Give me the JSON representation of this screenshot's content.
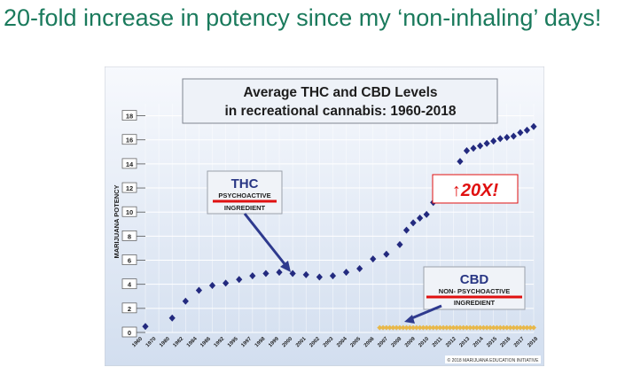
{
  "slide": {
    "title": "20-fold increase in potency since my ‘non-inhaling’ days!"
  },
  "chart_data": {
    "type": "scatter",
    "title": "Average THC and CBD Levels",
    "subtitle": "in recreational cannabis: 1960-2018",
    "ylabel": "MARIJUANA POTENCY",
    "xlabel": "",
    "ylim": [
      0,
      19
    ],
    "yticks": [
      0,
      2,
      4,
      6,
      8,
      10,
      12,
      14,
      16,
      18
    ],
    "xlim": [
      1960,
      2018
    ],
    "xticks": [
      "1960",
      "1970",
      "1980",
      "1982",
      "1984",
      "1986",
      "1992",
      "1995",
      "1997",
      "1998",
      "1999",
      "2000",
      "2001",
      "2002",
      "2003",
      "2004",
      "2005",
      "2006",
      "2007",
      "2008",
      "2009",
      "2010",
      "2011",
      "2012",
      "2013",
      "2014",
      "2015",
      "2016",
      "2017",
      "2018"
    ],
    "grid": true,
    "series": [
      {
        "name": "THC",
        "color": "#232a7f",
        "marker": "diamond",
        "x": [
          1960,
          1964,
          1966,
          1968,
          1970,
          1972,
          1974,
          1976,
          1978,
          1980,
          1982,
          1984,
          1986,
          1988,
          1990,
          1992,
          1994,
          1996,
          1998,
          1999,
          2000,
          2001,
          2002,
          2003,
          2004,
          2005,
          2006,
          2007,
          2008,
          2009,
          2010,
          2011,
          2012,
          2013,
          2014,
          2015,
          2016,
          2017,
          2018
        ],
        "y": [
          0.5,
          1.2,
          2.6,
          3.5,
          3.9,
          4.1,
          4.4,
          4.7,
          4.9,
          5.0,
          4.9,
          4.8,
          4.6,
          4.7,
          5.0,
          5.3,
          6.1,
          6.5,
          7.3,
          8.5,
          9.1,
          9.5,
          9.8,
          10.8,
          11.2,
          12.1,
          12.4,
          14.2,
          15.1,
          15.3,
          15.5,
          15.7,
          15.9,
          16.1,
          16.2,
          16.3,
          16.6,
          16.8,
          17.1
        ],
        "annotation": {
          "label": "THC",
          "sublabel": "PSYCHOACTIVE",
          "sublabel2": "INGREDIENT"
        }
      },
      {
        "name": "CBD",
        "color": "#e8b84a",
        "marker": "diamond",
        "x_start": 1995,
        "x_end": 2018,
        "y": 0.4,
        "annotation": {
          "label": "CBD",
          "sublabel": "NON- PSYCHOACTIVE",
          "sublabel2": "INGREDIENT"
        }
      }
    ],
    "callout": "↑20X!",
    "credit": "© 2018 MARIJUANA EDUCATION INITIATIVE"
  }
}
